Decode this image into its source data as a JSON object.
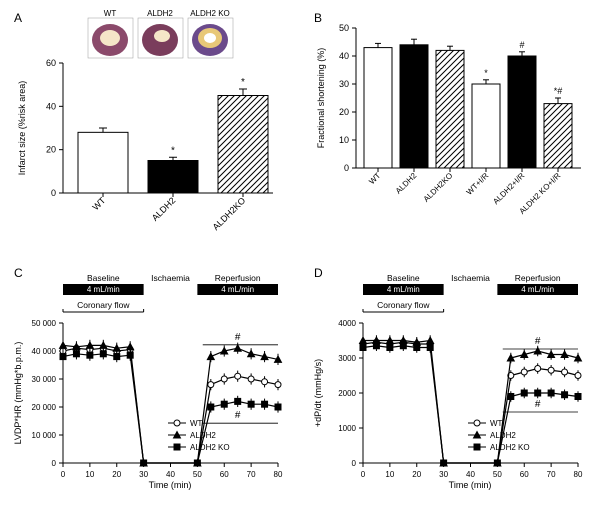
{
  "panelA": {
    "label": "A",
    "type": "bar",
    "ylabel": "Infarct size (%risk area)",
    "ylim": [
      0,
      60
    ],
    "ytick_step": 20,
    "categories": [
      "WT",
      "ALDH2",
      "ALDH2KO"
    ],
    "values": [
      28,
      15,
      45
    ],
    "errors": [
      2,
      1.5,
      3
    ],
    "bar_fills": [
      "#ffffff",
      "#000000",
      "hatch"
    ],
    "annotations": [
      "",
      "*",
      "*"
    ],
    "font_size_axis": 9,
    "font_size_tick": 9,
    "inset_labels": [
      "WT",
      "ALDH2",
      "ALDH2 KO"
    ]
  },
  "panelB": {
    "label": "B",
    "type": "bar",
    "ylabel": "Fractional shortening (%)",
    "ylim": [
      0,
      50
    ],
    "ytick_step": 10,
    "categories": [
      "WT",
      "ALDH2",
      "ALDH2KO",
      "WT+I/R",
      "ALDH2+I/R",
      "ALDH2 KO+I/R"
    ],
    "values": [
      43,
      44,
      42,
      30,
      40,
      23
    ],
    "errors": [
      1.5,
      2,
      1.5,
      1.5,
      1.5,
      2
    ],
    "bar_fills": [
      "#ffffff",
      "#000000",
      "hatch",
      "#ffffff",
      "#000000",
      "hatch"
    ],
    "annotations": [
      "",
      "",
      "",
      "*",
      "#",
      "*#"
    ],
    "font_size_axis": 9,
    "font_size_tick": 9
  },
  "panelC": {
    "label": "C",
    "type": "line",
    "ylabel": "LVDP*HR (mmHg*b.p.m.)",
    "xlabel": "Time (min)",
    "ylim": [
      0,
      50000
    ],
    "ytick_step": 10000,
    "ytick_labels": [
      "0",
      "10 000",
      "20 000",
      "30 000",
      "40 000",
      "50 000"
    ],
    "xlim": [
      0,
      80
    ],
    "xtick_step": 10,
    "protocol": {
      "baseline_label": "Baseline",
      "ischaemia_label": "Ischaemia",
      "reperfusion_label": "Reperfusion",
      "flow_label": "4 mL/min",
      "coronary_label": "Coronary flow",
      "baseline_x": [
        0,
        30
      ],
      "ischaemia_x": [
        30,
        50
      ],
      "reperfusion_x": [
        50,
        80
      ]
    },
    "series": [
      {
        "name": "WT",
        "marker": "open-circle",
        "color": "#ffffff",
        "x": [
          0,
          5,
          10,
          15,
          20,
          25,
          30,
          50,
          55,
          60,
          65,
          70,
          75,
          80
        ],
        "y": [
          40000,
          41000,
          40500,
          41000,
          40000,
          40500,
          0,
          0,
          28000,
          30000,
          31000,
          30000,
          29000,
          28000
        ]
      },
      {
        "name": "ALDH2",
        "marker": "triangle",
        "color": "#000000",
        "x": [
          0,
          5,
          10,
          15,
          20,
          25,
          30,
          50,
          55,
          60,
          65,
          70,
          75,
          80
        ],
        "y": [
          42000,
          41500,
          42000,
          42000,
          41000,
          41500,
          0,
          0,
          38000,
          40000,
          41000,
          39000,
          38000,
          37000
        ]
      },
      {
        "name": "ALDH2 KO",
        "marker": "square",
        "color": "#000000",
        "x": [
          0,
          5,
          10,
          15,
          20,
          25,
          30,
          50,
          55,
          60,
          65,
          70,
          75,
          80
        ],
        "y": [
          38000,
          39000,
          38500,
          39000,
          38000,
          38500,
          0,
          0,
          20000,
          21000,
          22000,
          21000,
          21000,
          20000
        ]
      }
    ],
    "sig_markers": [
      {
        "text": "#",
        "x": 65,
        "y": 44000
      },
      {
        "text": "#",
        "x": 65,
        "y": 16000
      }
    ],
    "error": 2000
  },
  "panelD": {
    "label": "D",
    "type": "line",
    "ylabel": "+dP/dt (mmHg/s)",
    "xlabel": "Time (min)",
    "ylim": [
      0,
      4000
    ],
    "ytick_step": 1000,
    "ytick_labels": [
      "0",
      "1000",
      "2000",
      "3000",
      "4000"
    ],
    "xlim": [
      0,
      80
    ],
    "xtick_step": 10,
    "protocol": {
      "baseline_label": "Baseline",
      "ischaemia_label": "Ischaemia",
      "reperfusion_label": "Reperfusion",
      "flow_label": "4 mL/min",
      "coronary_label": "Coronary flow",
      "baseline_x": [
        0,
        30
      ],
      "ischaemia_x": [
        30,
        50
      ],
      "reperfusion_x": [
        50,
        80
      ]
    },
    "series": [
      {
        "name": "WT",
        "marker": "open-circle",
        "color": "#ffffff",
        "x": [
          0,
          5,
          10,
          15,
          20,
          25,
          30,
          50,
          55,
          60,
          65,
          70,
          75,
          80
        ],
        "y": [
          3400,
          3450,
          3400,
          3450,
          3400,
          3400,
          0,
          0,
          2500,
          2600,
          2700,
          2650,
          2600,
          2500
        ]
      },
      {
        "name": "ALDH2",
        "marker": "triangle",
        "color": "#000000",
        "x": [
          0,
          5,
          10,
          15,
          20,
          25,
          30,
          50,
          55,
          60,
          65,
          70,
          75,
          80
        ],
        "y": [
          3500,
          3500,
          3500,
          3500,
          3450,
          3500,
          0,
          0,
          3000,
          3100,
          3200,
          3100,
          3100,
          3000
        ]
      },
      {
        "name": "ALDH2 KO",
        "marker": "square",
        "color": "#000000",
        "x": [
          0,
          5,
          10,
          15,
          20,
          25,
          30,
          50,
          55,
          60,
          65,
          70,
          75,
          80
        ],
        "y": [
          3300,
          3350,
          3300,
          3350,
          3300,
          3300,
          0,
          0,
          1900,
          2000,
          2000,
          2000,
          1950,
          1900
        ]
      }
    ],
    "sig_markers": [
      {
        "text": "#",
        "x": 65,
        "y": 3400
      },
      {
        "text": "#",
        "x": 65,
        "y": 1600
      }
    ],
    "error": 150
  },
  "legend": {
    "items": [
      "WT",
      "ALDH2",
      "ALDH2 KO"
    ]
  },
  "colors": {
    "background": "#ffffff",
    "axis": "#000000",
    "text": "#000000"
  }
}
